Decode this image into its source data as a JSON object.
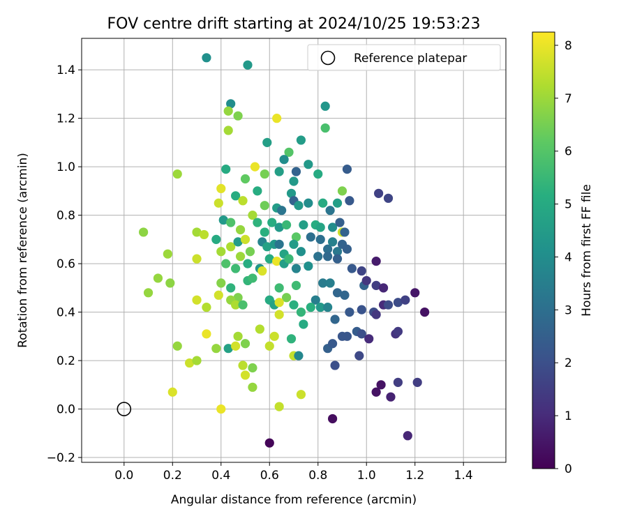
{
  "chart_data": {
    "type": "scatter",
    "title": "FOV centre drift starting at 2024/10/25 19:53:23",
    "xlabel": "Angular distance from reference (arcmin)",
    "ylabel": "Rotation from reference (arcmin)",
    "xlim": [
      -0.175,
      1.575
    ],
    "ylim": [
      -0.22,
      1.53
    ],
    "xticks": [
      "0.0",
      "0.2",
      "0.4",
      "0.6",
      "0.8",
      "1.0",
      "1.2",
      "1.4"
    ],
    "xtick_values": [
      0.0,
      0.2,
      0.4,
      0.6,
      0.8,
      1.0,
      1.2,
      1.4
    ],
    "yticks": [
      "−0.2",
      "0.0",
      "0.2",
      "0.4",
      "0.6",
      "0.8",
      "1.0",
      "1.2",
      "1.4"
    ],
    "ytick_values": [
      -0.2,
      0.0,
      0.2,
      0.4,
      0.6,
      0.8,
      1.0,
      1.2,
      1.4
    ],
    "grid": true,
    "legend": {
      "position": "top-right",
      "entries": [
        "Reference platepar"
      ]
    },
    "reference_point": {
      "x": 0.0,
      "y": 0.0
    },
    "colorbar": {
      "label": "Hours from first FF file",
      "colormap": "viridis",
      "range": [
        0,
        8.25
      ],
      "ticks": [
        "0",
        "1",
        "2",
        "3",
        "4",
        "5",
        "6",
        "7",
        "8"
      ],
      "tick_values": [
        0,
        1,
        2,
        3,
        4,
        5,
        6,
        7,
        8
      ]
    },
    "points": [
      [
        0.34,
        1.45,
        4.1
      ],
      [
        0.51,
        1.42,
        4.4
      ],
      [
        0.44,
        1.26,
        4.0
      ],
      [
        0.43,
        1.23,
        6.9
      ],
      [
        0.47,
        1.21,
        6.6
      ],
      [
        0.63,
        1.2,
        8.0
      ],
      [
        0.83,
        1.25,
        4.3
      ],
      [
        0.83,
        1.16,
        5.8
      ],
      [
        0.43,
        1.15,
        7.1
      ],
      [
        0.59,
        1.1,
        4.6
      ],
      [
        0.68,
        1.06,
        6.0
      ],
      [
        0.73,
        1.11,
        4.5
      ],
      [
        0.22,
        0.97,
        7.0
      ],
      [
        0.42,
        0.99,
        5.0
      ],
      [
        0.5,
        0.95,
        6.2
      ],
      [
        0.54,
        1.0,
        8.0
      ],
      [
        0.58,
        0.97,
        6.5
      ],
      [
        0.64,
        0.98,
        4.6
      ],
      [
        0.66,
        1.03,
        4.0
      ],
      [
        0.7,
        0.94,
        4.4
      ],
      [
        0.71,
        0.98,
        2.6
      ],
      [
        0.76,
        1.01,
        4.4
      ],
      [
        0.8,
        0.97,
        5.0
      ],
      [
        0.9,
        0.9,
        6.6
      ],
      [
        0.92,
        0.99,
        2.4
      ],
      [
        0.39,
        0.85,
        7.6
      ],
      [
        0.4,
        0.91,
        7.9
      ],
      [
        0.46,
        0.88,
        5.1
      ],
      [
        0.49,
        0.86,
        7.4
      ],
      [
        0.55,
        0.9,
        5.1
      ],
      [
        0.58,
        0.84,
        6.4
      ],
      [
        0.63,
        0.83,
        4.5
      ],
      [
        0.65,
        0.82,
        3.2
      ],
      [
        0.69,
        0.89,
        4.4
      ],
      [
        0.7,
        0.86,
        2.6
      ],
      [
        0.72,
        0.84,
        4.4
      ],
      [
        0.76,
        0.85,
        4.0
      ],
      [
        0.82,
        0.85,
        5.0
      ],
      [
        0.85,
        0.82,
        3.2
      ],
      [
        0.88,
        0.85,
        4.6
      ],
      [
        0.93,
        0.86,
        2.3
      ],
      [
        1.05,
        0.89,
        1.6
      ],
      [
        1.09,
        0.87,
        1.7
      ],
      [
        0.08,
        0.73,
        6.8
      ],
      [
        0.3,
        0.73,
        7.1
      ],
      [
        0.33,
        0.72,
        7.4
      ],
      [
        0.41,
        0.78,
        4.4
      ],
      [
        0.44,
        0.77,
        5.9
      ],
      [
        0.48,
        0.74,
        6.9
      ],
      [
        0.53,
        0.8,
        7.1
      ],
      [
        0.55,
        0.77,
        5.3
      ],
      [
        0.58,
        0.73,
        5.2
      ],
      [
        0.61,
        0.77,
        5.1
      ],
      [
        0.64,
        0.75,
        4.4
      ],
      [
        0.67,
        0.76,
        5.5
      ],
      [
        0.71,
        0.71,
        6.1
      ],
      [
        0.74,
        0.76,
        4.6
      ],
      [
        0.79,
        0.76,
        5.1
      ],
      [
        0.81,
        0.75,
        4.8
      ],
      [
        0.86,
        0.75,
        4.0
      ],
      [
        0.9,
        0.73,
        7.6
      ],
      [
        0.89,
        0.77,
        2.5
      ],
      [
        0.91,
        0.73,
        2.6
      ],
      [
        0.18,
        0.64,
        7.0
      ],
      [
        0.3,
        0.62,
        7.6
      ],
      [
        0.38,
        0.7,
        5.0
      ],
      [
        0.4,
        0.65,
        7.1
      ],
      [
        0.44,
        0.67,
        7.2
      ],
      [
        0.47,
        0.69,
        4.5
      ],
      [
        0.5,
        0.7,
        7.6
      ],
      [
        0.52,
        0.65,
        6.5
      ],
      [
        0.57,
        0.69,
        3.7
      ],
      [
        0.59,
        0.67,
        4.7
      ],
      [
        0.62,
        0.68,
        4.4
      ],
      [
        0.64,
        0.68,
        3.2
      ],
      [
        0.66,
        0.64,
        4.8
      ],
      [
        0.7,
        0.68,
        4.5
      ],
      [
        0.73,
        0.65,
        4.1
      ],
      [
        0.77,
        0.71,
        3.0
      ],
      [
        0.81,
        0.7,
        3.0
      ],
      [
        0.84,
        0.66,
        3.0
      ],
      [
        0.86,
        0.69,
        3.6
      ],
      [
        0.88,
        0.65,
        3.3
      ],
      [
        0.9,
        0.68,
        2.6
      ],
      [
        0.92,
        0.66,
        2.5
      ],
      [
        0.42,
        0.6,
        5.9
      ],
      [
        0.46,
        0.58,
        5.6
      ],
      [
        0.48,
        0.63,
        7.0
      ],
      [
        0.51,
        0.6,
        5.1
      ],
      [
        0.56,
        0.58,
        4.3
      ],
      [
        0.6,
        0.62,
        5.0
      ],
      [
        0.63,
        0.61,
        8.0
      ],
      [
        0.66,
        0.6,
        4.6
      ],
      [
        0.68,
        0.62,
        5.5
      ],
      [
        0.71,
        0.58,
        3.7
      ],
      [
        0.76,
        0.59,
        4.1
      ],
      [
        0.8,
        0.63,
        3.1
      ],
      [
        0.84,
        0.63,
        2.8
      ],
      [
        0.88,
        0.62,
        2.5
      ],
      [
        0.94,
        0.58,
        2.3
      ],
      [
        0.98,
        0.57,
        1.7
      ],
      [
        1.04,
        0.61,
        0.6
      ],
      [
        0.14,
        0.54,
        6.9
      ],
      [
        0.19,
        0.52,
        6.8
      ],
      [
        0.1,
        0.48,
        6.9
      ],
      [
        0.4,
        0.52,
        6.7
      ],
      [
        0.44,
        0.5,
        5.3
      ],
      [
        0.47,
        0.46,
        6.6
      ],
      [
        0.51,
        0.53,
        5.4
      ],
      [
        0.53,
        0.54,
        5.6
      ],
      [
        0.57,
        0.57,
        7.8
      ],
      [
        0.64,
        0.5,
        5.6
      ],
      [
        0.67,
        0.46,
        6.5
      ],
      [
        0.71,
        0.51,
        5.6
      ],
      [
        0.73,
        0.4,
        5.4
      ],
      [
        0.79,
        0.45,
        3.5
      ],
      [
        0.82,
        0.52,
        3.4
      ],
      [
        0.85,
        0.52,
        3.5
      ],
      [
        0.88,
        0.48,
        2.7
      ],
      [
        0.91,
        0.47,
        2.7
      ],
      [
        0.99,
        0.51,
        2.6
      ],
      [
        1.0,
        0.53,
        1.3
      ],
      [
        1.04,
        0.51,
        1.5
      ],
      [
        1.07,
        0.5,
        0.9
      ],
      [
        1.2,
        0.48,
        0.5
      ],
      [
        0.3,
        0.45,
        7.7
      ],
      [
        0.34,
        0.42,
        7.3
      ],
      [
        0.39,
        0.47,
        7.7
      ],
      [
        0.44,
        0.45,
        6.9
      ],
      [
        0.46,
        0.43,
        7.2
      ],
      [
        0.49,
        0.43,
        5.8
      ],
      [
        0.6,
        0.45,
        5.0
      ],
      [
        0.62,
        0.43,
        4.7
      ],
      [
        0.64,
        0.44,
        7.8
      ],
      [
        0.7,
        0.43,
        5.2
      ],
      [
        0.74,
        0.35,
        5.0
      ],
      [
        0.77,
        0.42,
        5.2
      ],
      [
        0.81,
        0.42,
        4.4
      ],
      [
        0.84,
        0.42,
        3.7
      ],
      [
        0.87,
        0.37,
        2.7
      ],
      [
        0.93,
        0.4,
        2.3
      ],
      [
        0.98,
        0.41,
        2.1
      ],
      [
        1.03,
        0.4,
        1.9
      ],
      [
        1.04,
        0.39,
        1.3
      ],
      [
        1.07,
        0.43,
        1.0
      ],
      [
        1.09,
        0.43,
        1.9
      ],
      [
        1.13,
        0.44,
        1.9
      ],
      [
        1.16,
        0.45,
        1.6
      ],
      [
        1.24,
        0.4,
        0.4
      ],
      [
        0.22,
        0.26,
        6.9
      ],
      [
        0.27,
        0.19,
        7.6
      ],
      [
        0.34,
        0.31,
        8.0
      ],
      [
        0.38,
        0.25,
        6.9
      ],
      [
        0.43,
        0.25,
        4.7
      ],
      [
        0.46,
        0.26,
        7.7
      ],
      [
        0.47,
        0.3,
        7.1
      ],
      [
        0.5,
        0.27,
        6.6
      ],
      [
        0.56,
        0.33,
        7.3
      ],
      [
        0.6,
        0.26,
        7.5
      ],
      [
        0.62,
        0.3,
        7.6
      ],
      [
        0.64,
        0.39,
        7.7
      ],
      [
        0.69,
        0.29,
        5.3
      ],
      [
        0.7,
        0.22,
        7.5
      ],
      [
        0.72,
        0.22,
        3.8
      ],
      [
        0.84,
        0.25,
        2.5
      ],
      [
        0.86,
        0.27,
        2.3
      ],
      [
        0.9,
        0.3,
        2.2
      ],
      [
        0.92,
        0.3,
        2.2
      ],
      [
        0.96,
        0.32,
        2.4
      ],
      [
        0.98,
        0.31,
        2.0
      ],
      [
        1.01,
        0.29,
        1.0
      ],
      [
        1.12,
        0.31,
        1.2
      ],
      [
        1.13,
        0.32,
        1.4
      ],
      [
        0.2,
        0.07,
        7.8
      ],
      [
        0.3,
        0.2,
        7.1
      ],
      [
        0.4,
        0.0,
        8.0
      ],
      [
        0.49,
        0.18,
        7.4
      ],
      [
        0.5,
        0.14,
        7.7
      ],
      [
        0.53,
        0.17,
        6.6
      ],
      [
        0.53,
        0.09,
        6.9
      ],
      [
        0.64,
        0.01,
        7.5
      ],
      [
        0.73,
        0.06,
        7.6
      ],
      [
        0.87,
        0.18,
        2.0
      ],
      [
        0.97,
        0.22,
        1.8
      ],
      [
        1.04,
        0.07,
        0.4
      ],
      [
        1.06,
        0.1,
        0.4
      ],
      [
        1.1,
        0.05,
        0.8
      ],
      [
        1.13,
        0.11,
        1.5
      ],
      [
        1.21,
        0.11,
        1.5
      ],
      [
        0.86,
        -0.04,
        0.3
      ],
      [
        0.6,
        -0.14,
        0.1
      ],
      [
        1.17,
        -0.11,
        0.9
      ]
    ]
  }
}
